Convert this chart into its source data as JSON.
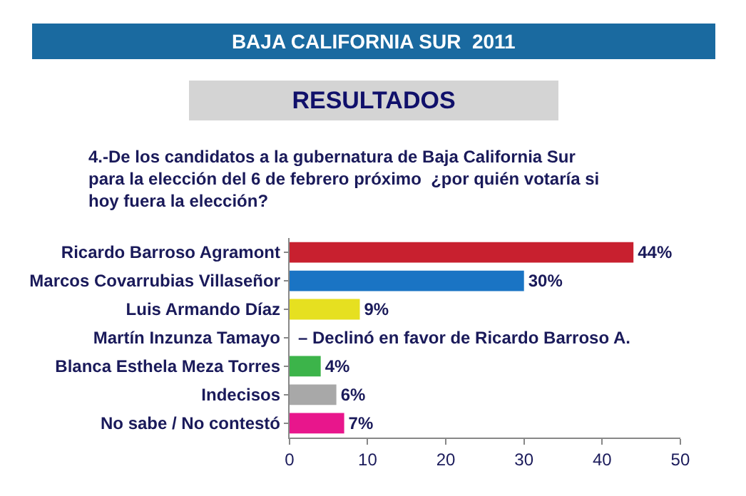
{
  "chart_data": {
    "type": "bar",
    "orientation": "horizontal",
    "title": "BAJA CALIFORNIA SUR  2011",
    "subtitle": "RESULTADOS",
    "annotations": [
      "4.-De los candidatos a la gubernatura de Baja California Sur para la elección del 6 de febrero próximo  ¿por quién votaría si hoy fuera la elección?"
    ],
    "categories": [
      "Ricardo Barroso Agramont",
      "Marcos Covarrubias Villaseñor",
      "Luis Armando Díaz",
      "Martín Inzunza Tamayo",
      "Blanca Esthela Meza Torres",
      "Indecisos",
      "No sabe / No contestó"
    ],
    "values": [
      44,
      30,
      9,
      null,
      4,
      6,
      7
    ],
    "colors": [
      "#c8202f",
      "#1a74c4",
      "#e6e020",
      null,
      "#3cb44a",
      "#a8a8a8",
      "#e8168c"
    ],
    "value_labels": [
      "44%",
      "30%",
      "9%",
      "– Declinó en favor de Ricardo Barroso A.",
      "4%",
      "6%",
      "7%"
    ],
    "xlim": [
      0,
      50
    ],
    "xticks": [
      0,
      10,
      20,
      30,
      40,
      50
    ],
    "legend": false
  }
}
